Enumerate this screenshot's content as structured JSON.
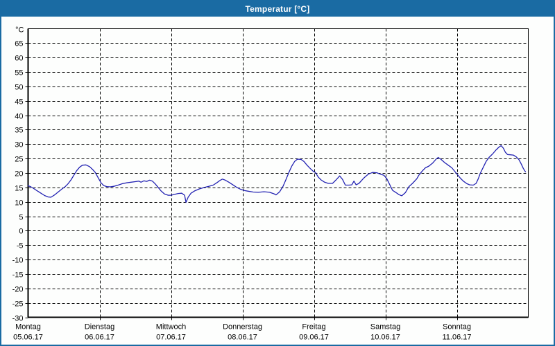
{
  "window": {
    "title": "Temperatur [°C]",
    "titlebar_color": "#1a6ba3",
    "border_color": "#1a6ba3"
  },
  "chart_data": {
    "type": "line",
    "title": "Temperatur [°C]",
    "ylabel_unit": "°C",
    "ylim": [
      -30,
      70
    ],
    "ytick_step": 5,
    "yticks": [
      65,
      60,
      55,
      50,
      45,
      40,
      35,
      30,
      25,
      20,
      15,
      10,
      5,
      0,
      -5,
      -10,
      -15,
      -20,
      -25,
      -30
    ],
    "grid": "dashed",
    "legend": "none",
    "line_color": "#2222b2",
    "grid_color": "#000000",
    "x_days": [
      {
        "name": "Montag",
        "date": "05.06.17"
      },
      {
        "name": "Dienstag",
        "date": "06.06.17"
      },
      {
        "name": "Mittwoch",
        "date": "07.06.17"
      },
      {
        "name": "Donnerstag",
        "date": "08.06.17"
      },
      {
        "name": "Freitag",
        "date": "09.06.17"
      },
      {
        "name": "Samstag",
        "date": "10.06.17"
      },
      {
        "name": "Sonntag",
        "date": "11.06.17"
      }
    ],
    "series": [
      {
        "name": "Temperatur",
        "unit": "°C",
        "x_unit": "days_from_monday",
        "points": [
          [
            0.0,
            15.6
          ],
          [
            0.04,
            15.2
          ],
          [
            0.08,
            14.6
          ],
          [
            0.13,
            13.8
          ],
          [
            0.18,
            13.0
          ],
          [
            0.23,
            12.2
          ],
          [
            0.28,
            11.7
          ],
          [
            0.32,
            11.6
          ],
          [
            0.37,
            12.4
          ],
          [
            0.42,
            13.4
          ],
          [
            0.47,
            14.4
          ],
          [
            0.52,
            15.3
          ],
          [
            0.56,
            16.3
          ],
          [
            0.6,
            17.6
          ],
          [
            0.64,
            19.2
          ],
          [
            0.68,
            20.8
          ],
          [
            0.72,
            22.0
          ],
          [
            0.76,
            22.7
          ],
          [
            0.81,
            22.8
          ],
          [
            0.86,
            22.2
          ],
          [
            0.9,
            21.3
          ],
          [
            0.94,
            20.2
          ],
          [
            0.98,
            18.4
          ],
          [
            1.02,
            16.6
          ],
          [
            1.06,
            15.6
          ],
          [
            1.1,
            15.3
          ],
          [
            1.15,
            15.2
          ],
          [
            1.2,
            15.4
          ],
          [
            1.26,
            15.8
          ],
          [
            1.32,
            16.3
          ],
          [
            1.38,
            16.6
          ],
          [
            1.44,
            16.8
          ],
          [
            1.5,
            17.0
          ],
          [
            1.55,
            17.2
          ],
          [
            1.58,
            16.8
          ],
          [
            1.62,
            17.3
          ],
          [
            1.66,
            17.1
          ],
          [
            1.7,
            17.5
          ],
          [
            1.74,
            17.2
          ],
          [
            1.78,
            16.2
          ],
          [
            1.82,
            15.0
          ],
          [
            1.86,
            13.8
          ],
          [
            1.91,
            12.7
          ],
          [
            1.96,
            12.3
          ],
          [
            2.0,
            12.3
          ],
          [
            2.05,
            12.6
          ],
          [
            2.1,
            12.9
          ],
          [
            2.15,
            13.0
          ],
          [
            2.19,
            12.3
          ],
          [
            2.21,
            9.8
          ],
          [
            2.24,
            11.6
          ],
          [
            2.28,
            13.0
          ],
          [
            2.33,
            13.8
          ],
          [
            2.4,
            14.5
          ],
          [
            2.47,
            15.0
          ],
          [
            2.53,
            15.4
          ],
          [
            2.59,
            15.8
          ],
          [
            2.64,
            16.6
          ],
          [
            2.69,
            17.5
          ],
          [
            2.72,
            17.9
          ],
          [
            2.76,
            17.5
          ],
          [
            2.81,
            16.8
          ],
          [
            2.86,
            16.0
          ],
          [
            2.92,
            15.0
          ],
          [
            2.98,
            14.3
          ],
          [
            3.03,
            13.9
          ],
          [
            3.08,
            13.7
          ],
          [
            3.15,
            13.4
          ],
          [
            3.22,
            13.3
          ],
          [
            3.3,
            13.5
          ],
          [
            3.38,
            13.3
          ],
          [
            3.44,
            12.8
          ],
          [
            3.47,
            12.4
          ],
          [
            3.52,
            13.5
          ],
          [
            3.57,
            15.5
          ],
          [
            3.61,
            17.8
          ],
          [
            3.65,
            20.2
          ],
          [
            3.69,
            22.4
          ],
          [
            3.73,
            24.0
          ],
          [
            3.77,
            24.8
          ],
          [
            3.82,
            24.7
          ],
          [
            3.86,
            24.0
          ],
          [
            3.9,
            22.8
          ],
          [
            3.95,
            21.5
          ],
          [
            3.99,
            20.6
          ],
          [
            4.02,
            20.2
          ],
          [
            4.06,
            18.6
          ],
          [
            4.1,
            17.6
          ],
          [
            4.15,
            16.8
          ],
          [
            4.2,
            16.4
          ],
          [
            4.26,
            16.4
          ],
          [
            4.31,
            17.6
          ],
          [
            4.36,
            19.0
          ],
          [
            4.4,
            17.8
          ],
          [
            4.44,
            15.8
          ],
          [
            4.49,
            15.8
          ],
          [
            4.53,
            15.9
          ],
          [
            4.56,
            17.2
          ],
          [
            4.59,
            15.9
          ],
          [
            4.63,
            16.4
          ],
          [
            4.7,
            18.3
          ],
          [
            4.76,
            19.6
          ],
          [
            4.82,
            20.2
          ],
          [
            4.88,
            20.1
          ],
          [
            4.93,
            19.6
          ],
          [
            4.98,
            19.2
          ],
          [
            5.02,
            18.0
          ],
          [
            5.06,
            16.0
          ],
          [
            5.1,
            14.0
          ],
          [
            5.15,
            13.2
          ],
          [
            5.19,
            12.5
          ],
          [
            5.23,
            12.1
          ],
          [
            5.28,
            13.2
          ],
          [
            5.33,
            15.3
          ],
          [
            5.38,
            16.4
          ],
          [
            5.44,
            18.0
          ],
          [
            5.47,
            19.3
          ],
          [
            5.52,
            20.8
          ],
          [
            5.56,
            21.8
          ],
          [
            5.61,
            22.4
          ],
          [
            5.66,
            23.4
          ],
          [
            5.71,
            24.8
          ],
          [
            5.74,
            25.4
          ],
          [
            5.78,
            24.7
          ],
          [
            5.83,
            23.6
          ],
          [
            5.88,
            22.7
          ],
          [
            5.93,
            21.8
          ],
          [
            5.97,
            20.6
          ],
          [
            6.01,
            19.4
          ],
          [
            6.05,
            18.2
          ],
          [
            6.09,
            17.2
          ],
          [
            6.14,
            16.3
          ],
          [
            6.18,
            15.9
          ],
          [
            6.23,
            15.8
          ],
          [
            6.27,
            16.4
          ],
          [
            6.3,
            18.0
          ],
          [
            6.33,
            20.0
          ],
          [
            6.37,
            22.0
          ],
          [
            6.41,
            24.0
          ],
          [
            6.45,
            25.4
          ],
          [
            6.5,
            26.6
          ],
          [
            6.55,
            28.0
          ],
          [
            6.59,
            29.0
          ],
          [
            6.62,
            29.5
          ],
          [
            6.65,
            28.6
          ],
          [
            6.68,
            27.2
          ],
          [
            6.71,
            26.4
          ],
          [
            6.75,
            26.3
          ],
          [
            6.79,
            26.2
          ],
          [
            6.83,
            25.6
          ],
          [
            6.87,
            24.6
          ],
          [
            6.9,
            23.2
          ],
          [
            6.93,
            21.6
          ],
          [
            6.96,
            20.4
          ]
        ]
      }
    ]
  }
}
